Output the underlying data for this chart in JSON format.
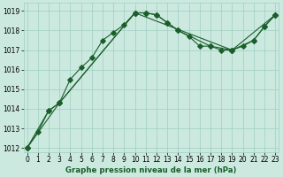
{
  "line1_x": [
    0,
    1,
    2,
    3,
    4,
    5,
    6,
    7,
    8,
    9,
    10,
    11,
    12,
    13,
    14,
    15,
    16,
    17,
    18,
    19,
    20,
    21,
    22,
    23
  ],
  "line1_y": [
    1012.0,
    1012.8,
    1013.9,
    1014.3,
    1015.5,
    1016.1,
    1016.6,
    1017.5,
    1017.9,
    1018.3,
    1018.9,
    1018.9,
    1018.8,
    1018.4,
    1018.0,
    1017.7,
    1017.2,
    1017.2,
    1017.0,
    1017.0,
    1017.2,
    1017.5,
    1018.2,
    1018.8
  ],
  "line2_x": [
    0,
    2,
    3,
    10,
    11,
    12,
    13,
    14,
    17,
    19,
    21,
    22,
    23
  ],
  "line2_y": [
    1012.0,
    1013.9,
    1014.3,
    1018.9,
    1018.9,
    1018.8,
    1018.4,
    1018.0,
    1017.2,
    1017.0,
    1017.5,
    1018.2,
    1018.8
  ],
  "line3_x": [
    0,
    3,
    10,
    19,
    23
  ],
  "line3_y": [
    1012.0,
    1014.3,
    1018.9,
    1017.0,
    1018.8
  ],
  "bg_color": "#cce9e0",
  "grid_color": "#9ecfbf",
  "line_color": "#1a5e2a",
  "title": "Graphe pression niveau de la mer (hPa)",
  "xlim_min": -0.3,
  "xlim_max": 23.3,
  "ylim_min": 1011.8,
  "ylim_max": 1019.4,
  "yticks": [
    1012,
    1013,
    1014,
    1015,
    1016,
    1017,
    1018,
    1019
  ],
  "xticks": [
    0,
    1,
    2,
    3,
    4,
    5,
    6,
    7,
    8,
    9,
    10,
    11,
    12,
    13,
    14,
    15,
    16,
    17,
    18,
    19,
    20,
    21,
    22,
    23
  ],
  "tick_fontsize": 5.5,
  "title_fontsize": 6.2,
  "marker": "D",
  "markersize": 2.8,
  "linewidth": 0.8
}
